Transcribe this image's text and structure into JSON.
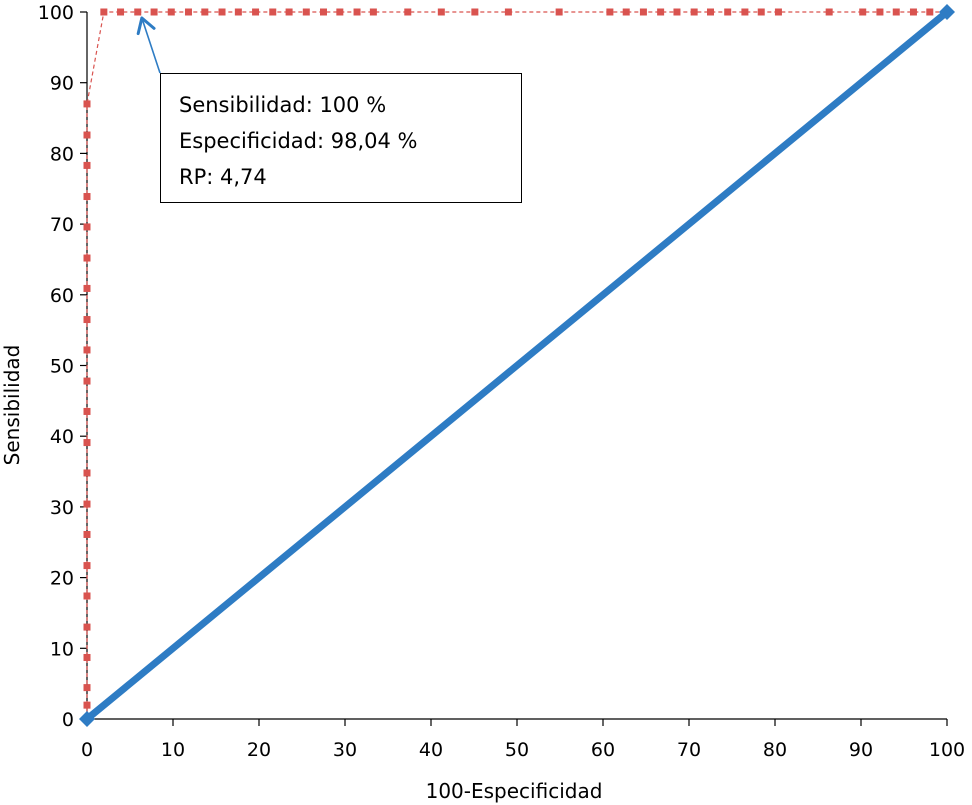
{
  "chart_data": {
    "type": "line",
    "xlabel": "100-Especificidad",
    "ylabel": "Sensibilidad",
    "xlim": [
      0,
      100
    ],
    "ylim": [
      0,
      100
    ],
    "xticks": [
      0,
      10,
      20,
      30,
      40,
      50,
      60,
      70,
      80,
      90,
      100
    ],
    "yticks": [
      0,
      10,
      20,
      30,
      40,
      50,
      60,
      70,
      80,
      90,
      100
    ],
    "series": [
      {
        "color": "#d9534f",
        "style": "dashed-square-markers",
        "points": [
          [
            0,
            0
          ],
          [
            0,
            1.96
          ],
          [
            0,
            4.44
          ],
          [
            0,
            8.7
          ],
          [
            0,
            13.0
          ],
          [
            0,
            17.4
          ],
          [
            0,
            21.7
          ],
          [
            0,
            26.1
          ],
          [
            0,
            30.4
          ],
          [
            0,
            34.8
          ],
          [
            0,
            39.1
          ],
          [
            0,
            43.5
          ],
          [
            0,
            47.8
          ],
          [
            0,
            52.2
          ],
          [
            0,
            56.5
          ],
          [
            0,
            60.9
          ],
          [
            0,
            65.2
          ],
          [
            0,
            69.6
          ],
          [
            0,
            73.9
          ],
          [
            0,
            78.3
          ],
          [
            0,
            82.6
          ],
          [
            0,
            87.0
          ],
          [
            1.96,
            100
          ],
          [
            3.9,
            100
          ],
          [
            5.9,
            100
          ],
          [
            7.8,
            100
          ],
          [
            9.8,
            100
          ],
          [
            11.8,
            100
          ],
          [
            13.7,
            100
          ],
          [
            15.7,
            100
          ],
          [
            17.6,
            100
          ],
          [
            19.6,
            100
          ],
          [
            21.6,
            100
          ],
          [
            23.5,
            100
          ],
          [
            25.5,
            100
          ],
          [
            27.5,
            100
          ],
          [
            29.4,
            100
          ],
          [
            31.4,
            100
          ],
          [
            33.3,
            100
          ],
          [
            37.3,
            100
          ],
          [
            41.2,
            100
          ],
          [
            45.1,
            100
          ],
          [
            49.0,
            100
          ],
          [
            54.9,
            100
          ],
          [
            60.8,
            100
          ],
          [
            62.7,
            100
          ],
          [
            64.7,
            100
          ],
          [
            66.7,
            100
          ],
          [
            68.6,
            100
          ],
          [
            70.6,
            100
          ],
          [
            72.5,
            100
          ],
          [
            74.5,
            100
          ],
          [
            76.5,
            100
          ],
          [
            78.4,
            100
          ],
          [
            80.4,
            100
          ],
          [
            86.3,
            100
          ],
          [
            90.2,
            100
          ],
          [
            92.2,
            100
          ],
          [
            94.1,
            100
          ],
          [
            96.1,
            100
          ],
          [
            98.0,
            100
          ],
          [
            100,
            100
          ]
        ]
      },
      {
        "color": "#2e7cc4",
        "style": "thick-line-diamond-markers",
        "points": [
          [
            0,
            0
          ],
          [
            100,
            100
          ]
        ]
      }
    ],
    "annotation": {
      "lines": [
        "Sensibilidad: 100 %",
        "Especificidad: 98,04 %",
        "RP: 4,74"
      ],
      "target": [
        1.96,
        100
      ]
    }
  }
}
